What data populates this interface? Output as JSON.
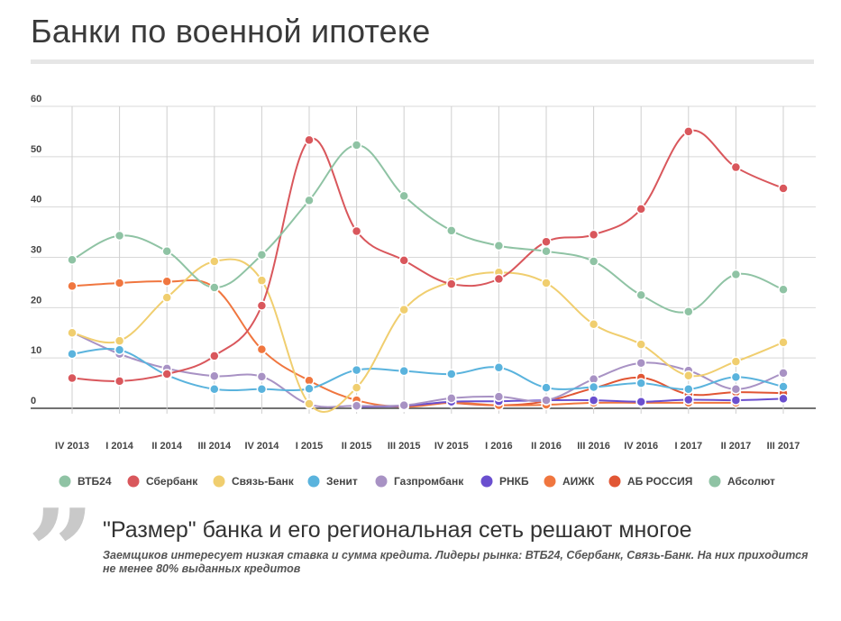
{
  "title": "Банки по военной ипотеке",
  "quote": {
    "headline": "\"Размер\" банка и его региональная сеть решают многое",
    "body": "Заемщиков интересует низкая ставка и сумма кредита. Лидеры рынка: ВТБ24, Сбербанк, Связь-Банк. На них приходится не менее 80% выданных кредитов"
  },
  "chart_data": {
    "type": "line",
    "title": "Банки по военной ипотеке",
    "xlabel": "",
    "ylabel": "",
    "ylim": [
      0,
      60
    ],
    "yticks": [
      0,
      10,
      20,
      30,
      40,
      50,
      60
    ],
    "grid": "vertical",
    "legend_position": "bottom",
    "categories": [
      "IV 2013",
      "I 2014",
      "II 2014",
      "III 2014",
      "IV 2014",
      "I 2015",
      "II 2015",
      "III 2015",
      "IV 2015",
      "I 2016",
      "II 2016",
      "III 2016",
      "IV 2016",
      "I 2017",
      "II 2017",
      "III 2017"
    ],
    "series": [
      {
        "name": "ВТБ24",
        "color": "#8fc3a4",
        "values": [
          29.5,
          34.3,
          31.2,
          24,
          30.5,
          41.3,
          52.3,
          42.2,
          35.3,
          32.3,
          31.2,
          29.2,
          22.5,
          19.2,
          26.6,
          23.6
        ]
      },
      {
        "name": "Сбербанк",
        "color": "#d9575c",
        "values": [
          6,
          5.4,
          6.8,
          10.4,
          20.4,
          53.3,
          35.2,
          29.4,
          24.7,
          25.7,
          33.1,
          34.5,
          39.6,
          55,
          47.9,
          43.7
        ]
      },
      {
        "name": "Связь-Банк",
        "color": "#f0ce6f",
        "values": [
          15,
          13.4,
          22,
          29.2,
          25.4,
          0.9,
          4.1,
          19.6,
          25.2,
          27,
          24.9,
          16.7,
          12.7,
          6.5,
          9.3,
          13.1
        ]
      },
      {
        "name": "Зенит",
        "color": "#5ab3dd",
        "values": [
          10.8,
          11.6,
          6.6,
          3.8,
          3.8,
          3.9,
          7.6,
          7.4,
          6.8,
          8.1,
          4.1,
          4.2,
          5,
          3.8,
          6.2,
          4.3
        ]
      },
      {
        "name": "Газпромбанк",
        "color": "#a892c4",
        "values": [
          15.1,
          10.8,
          7.9,
          6.4,
          6.3,
          0.8,
          0.5,
          0.6,
          2,
          2.3,
          1.6,
          5.8,
          9,
          7.5,
          3.8,
          7
        ]
      },
      {
        "name": "РНКБ",
        "color": "#6a4fcf",
        "values": [
          null,
          null,
          null,
          null,
          null,
          null,
          0.3,
          0.5,
          1.3,
          1.4,
          1.6,
          1.6,
          1.3,
          1.7,
          1.6,
          1.9
        ]
      },
      {
        "name": "АИЖК",
        "color": "#f0763f",
        "values": [
          24.3,
          24.9,
          25.2,
          24,
          11.7,
          5.5,
          1.6,
          0.3,
          1.1,
          0.6,
          0.7,
          1.1,
          1.1,
          1.1,
          1.1,
          null
        ]
      },
      {
        "name": "АБ РОССИЯ",
        "color": "#e15634",
        "values": [
          null,
          null,
          null,
          null,
          null,
          null,
          null,
          null,
          1.1,
          0.6,
          1.4,
          4,
          6.1,
          2.8,
          3.2,
          3
        ]
      },
      {
        "name": "Абсолют",
        "color": "#8fc3a4",
        "values": [
          null,
          null,
          null,
          null,
          null,
          null,
          null,
          null,
          null,
          null,
          null,
          null,
          null,
          null,
          null,
          1.8
        ]
      }
    ]
  }
}
